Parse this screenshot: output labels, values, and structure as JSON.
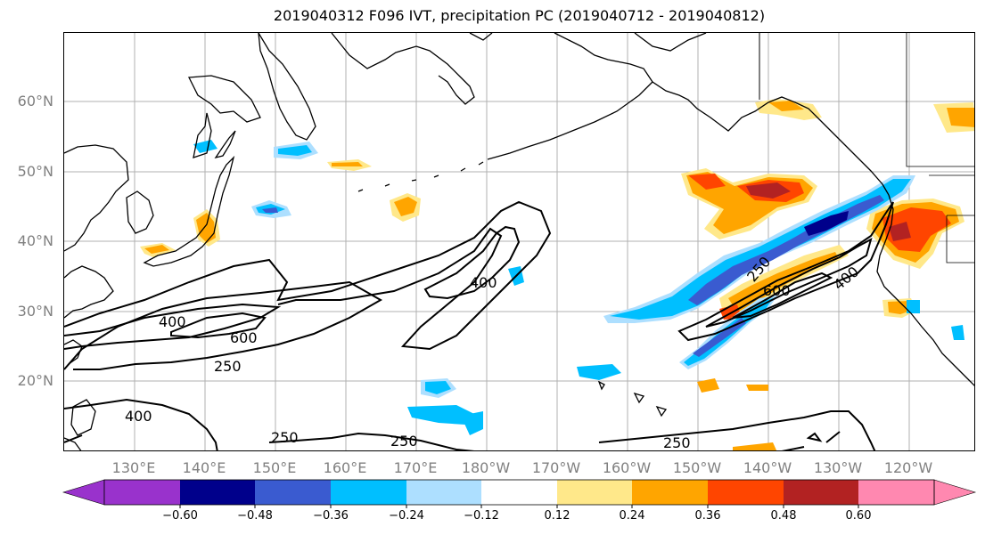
{
  "title": "2019040312 F096 IVT, precipitation PC (2019040712 - 2019040812)",
  "lat_labels": [
    "60°N",
    "50°N",
    "40°N",
    "30°N",
    "20°N"
  ],
  "lon_labels": [
    "130°E",
    "140°E",
    "150°E",
    "160°E",
    "170°E",
    "180°W",
    "170°W",
    "160°W",
    "150°W",
    "140°W",
    "130°W",
    "120°W"
  ],
  "contour_labels": {
    "c400_west": "400",
    "c600_west": "600",
    "c250_west": "250",
    "c400_mid": "400",
    "c400_south": "400",
    "c250_south1": "250",
    "c250_south2": "250",
    "c250_south3": "250",
    "c250_east": "250",
    "c600_east": "600",
    "c400_east": "400"
  },
  "colorbar": {
    "ticks": [
      "−0.60",
      "−0.48",
      "−0.36",
      "−0.24",
      "−0.12",
      "0.12",
      "0.24",
      "0.36",
      "0.48",
      "0.60"
    ],
    "colors": [
      "#9932CC",
      "#00008B",
      "#3A5BD0",
      "#00BFFF",
      "#ADDFFF",
      "#FFFFFF",
      "#FFE88A",
      "#FFA500",
      "#FF4500",
      "#B22222",
      "#FF88B0"
    ]
  }
}
